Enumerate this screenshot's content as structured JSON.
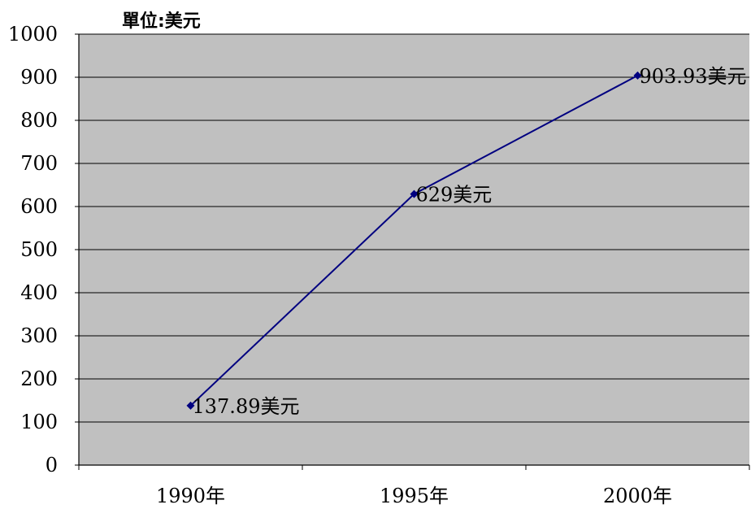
{
  "chart_data": {
    "type": "line",
    "unit_label": "單位:美元",
    "categories": [
      "1990年",
      "1995年",
      "2000年"
    ],
    "series": [
      {
        "values": [
          137.89,
          629,
          903.93
        ],
        "data_labels": [
          "137.89美元",
          "629美元",
          "903.93美元"
        ]
      }
    ],
    "ylim": [
      0,
      1000
    ],
    "yticks": [
      "0",
      "100",
      "200",
      "300",
      "400",
      "500",
      "600",
      "700",
      "800",
      "900",
      "1000"
    ],
    "grid": true,
    "legend": "none"
  },
  "colors": {
    "plot_background": "#c0c0c0",
    "line": "#000080",
    "gridline": "#000000"
  }
}
